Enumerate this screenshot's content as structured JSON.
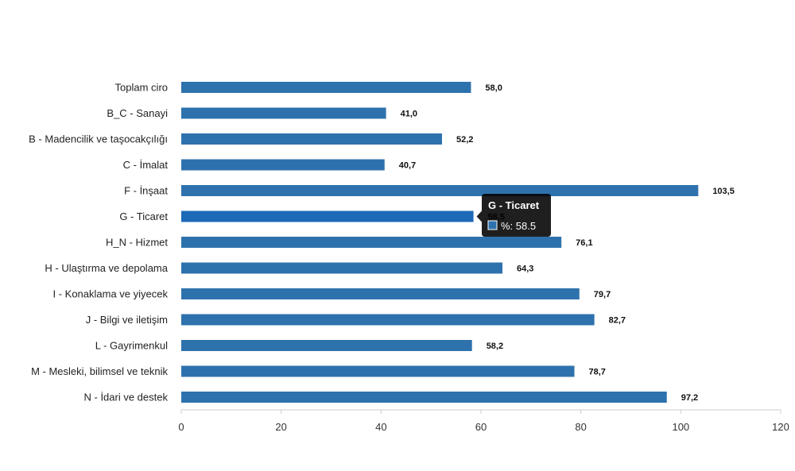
{
  "chart_data": {
    "type": "bar",
    "orientation": "horizontal",
    "categories": [
      "Toplam ciro",
      "B_C - Sanayi",
      "B - Madencilik ve taşocakçılığı",
      "C - İmalat",
      "F - İnşaat",
      "G - Ticaret",
      "H_N - Hizmet",
      "H - Ulaştırma ve depolama",
      "I - Konaklama ve yiyecek",
      "J - Bilgi ve iletişim",
      "L - Gayrimenkul",
      "M - Mesleki, bilimsel ve teknik",
      "N - İdari ve destek"
    ],
    "values": [
      58.0,
      41.0,
      52.2,
      40.7,
      103.5,
      58.5,
      76.1,
      64.3,
      79.7,
      82.7,
      58.2,
      78.7,
      97.2
    ],
    "value_labels": [
      "58,0",
      "41,0",
      "52,2",
      "40,7",
      "103,5",
      "58,5",
      "76,1",
      "64,3",
      "79,7",
      "82,7",
      "58,2",
      "78,7",
      "97,2"
    ],
    "xlim": [
      0,
      120
    ],
    "x_ticks": [
      "0",
      "20",
      "40",
      "60",
      "80",
      "100",
      "120"
    ],
    "grid": false,
    "bar_color": "#2e72ad",
    "highlight_color": "#1d6ab8",
    "highlighted_index": 5,
    "tooltip": {
      "title": "G - Ticaret",
      "body": "%: 58.5",
      "background": "#000000"
    }
  }
}
